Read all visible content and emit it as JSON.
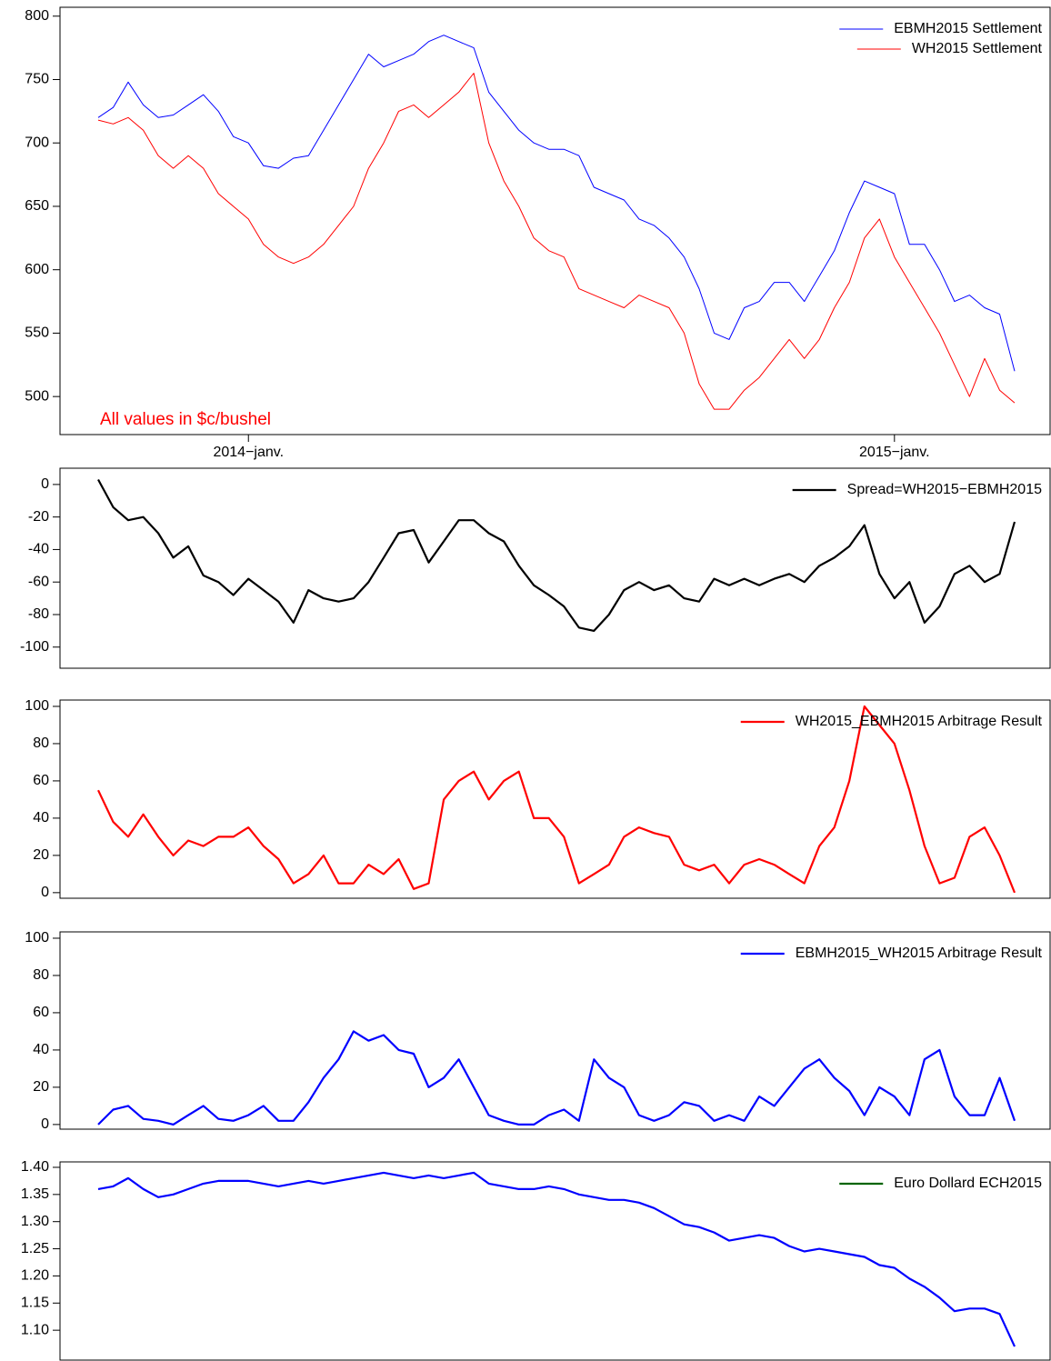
{
  "chart_data": [
    {
      "type": "line",
      "ylim": [
        470,
        807
      ],
      "yticks": [
        500,
        550,
        600,
        650,
        700,
        750,
        800
      ],
      "categories": [
        null,
        null,
        null,
        null,
        null,
        null,
        null,
        null,
        null,
        null,
        "2014−janv.",
        null,
        null,
        null,
        null,
        null,
        null,
        null,
        null,
        null,
        null,
        null,
        null,
        null,
        null,
        null,
        null,
        null,
        null,
        null,
        null,
        null,
        null,
        null,
        null,
        null,
        null,
        null,
        null,
        null,
        null,
        null,
        null,
        null,
        null,
        null,
        null,
        null,
        null,
        null,
        null,
        null,
        null,
        "2015−janv.",
        null,
        null,
        null,
        null,
        null,
        null,
        null,
        null
      ],
      "annotation": "All values in $c/bushel",
      "annotation_color": "#ff0000",
      "legend": "top-right",
      "series": [
        {
          "name": "EBMH2015 Settlement",
          "color": "#0000ff",
          "values": [
            720,
            728,
            748,
            730,
            720,
            722,
            730,
            738,
            725,
            705,
            700,
            682,
            680,
            688,
            690,
            710,
            730,
            750,
            770,
            760,
            765,
            770,
            780,
            785,
            780,
            775,
            740,
            725,
            710,
            700,
            695,
            695,
            690,
            665,
            660,
            655,
            640,
            635,
            625,
            610,
            585,
            550,
            545,
            570,
            575,
            590,
            590,
            575,
            595,
            615,
            645,
            670,
            665,
            660,
            620,
            620,
            600,
            575,
            580,
            570,
            565,
            520
          ]
        },
        {
          "name": "WH2015 Settlement",
          "color": "#ff0000",
          "values": [
            718,
            715,
            720,
            710,
            690,
            680,
            690,
            680,
            660,
            650,
            640,
            620,
            610,
            605,
            610,
            620,
            635,
            650,
            680,
            700,
            725,
            730,
            720,
            730,
            740,
            755,
            700,
            670,
            650,
            625,
            615,
            610,
            585,
            580,
            575,
            570,
            580,
            575,
            570,
            550,
            510,
            490,
            490,
            505,
            515,
            530,
            545,
            530,
            545,
            570,
            590,
            625,
            640,
            610,
            590,
            570,
            550,
            525,
            500,
            530,
            505,
            495
          ]
        }
      ]
    },
    {
      "type": "line",
      "ylim": [
        -113,
        10
      ],
      "yticks": [
        0,
        -20,
        -40,
        -60,
        -80,
        -100
      ],
      "legend": "top-right",
      "series": [
        {
          "name": "Spread=WH2015−EBMH2015",
          "color": "#000000",
          "values": [
            3,
            -14,
            -22,
            -20,
            -30,
            -45,
            -38,
            -56,
            -60,
            -68,
            -58,
            -65,
            -72,
            -85,
            -65,
            -70,
            -72,
            -70,
            -60,
            -45,
            -30,
            -28,
            -48,
            -35,
            -22,
            -22,
            -30,
            -35,
            -50,
            -62,
            -68,
            -75,
            -88,
            -90,
            -80,
            -65,
            -60,
            -65,
            -62,
            -70,
            -72,
            -58,
            -62,
            -58,
            -62,
            -58,
            -55,
            -60,
            -50,
            -45,
            -38,
            -25,
            -55,
            -70,
            -60,
            -85,
            -75,
            -55,
            -50,
            -60,
            -55,
            -23
          ]
        }
      ]
    },
    {
      "type": "line",
      "ylim": [
        -3,
        103.4
      ],
      "yticks": [
        0,
        20,
        40,
        60,
        80,
        100
      ],
      "legend": "top-right",
      "series": [
        {
          "name": "WH2015_EBMH2015 Arbitrage Result",
          "color": "#ff0000",
          "values": [
            55,
            38,
            30,
            42,
            30,
            20,
            28,
            25,
            30,
            30,
            35,
            25,
            18,
            5,
            10,
            20,
            5,
            5,
            15,
            10,
            18,
            2,
            5,
            50,
            60,
            65,
            50,
            60,
            65,
            40,
            40,
            30,
            5,
            10,
            15,
            30,
            35,
            32,
            30,
            15,
            12,
            15,
            5,
            15,
            18,
            15,
            10,
            5,
            25,
            35,
            60,
            100,
            90,
            80,
            55,
            25,
            5,
            8,
            30,
            35,
            20,
            0
          ]
        }
      ]
    },
    {
      "type": "line",
      "ylim": [
        -2.5,
        103.4
      ],
      "yticks": [
        0,
        20,
        40,
        60,
        80,
        100
      ],
      "legend": "top-right",
      "series": [
        {
          "name": "EBMH2015_WH2015 Arbitrage Result",
          "color": "#0000ff",
          "values": [
            0,
            8,
            10,
            3,
            2,
            0,
            5,
            10,
            3,
            2,
            5,
            10,
            2,
            2,
            12,
            25,
            35,
            50,
            45,
            48,
            40,
            38,
            20,
            25,
            35,
            20,
            5,
            2,
            0,
            0,
            5,
            8,
            2,
            35,
            25,
            20,
            5,
            2,
            5,
            12,
            10,
            2,
            5,
            2,
            15,
            10,
            20,
            30,
            35,
            25,
            18,
            5,
            20,
            15,
            5,
            35,
            40,
            15,
            5,
            5,
            25,
            2
          ]
        }
      ]
    },
    {
      "type": "line",
      "ylim": [
        1.045,
        1.41
      ],
      "yticks": [
        {
          "value": 1.4,
          "label": "1.40"
        },
        1.35,
        {
          "value": 1.3,
          "label": "1.30"
        },
        1.25,
        {
          "value": 1.2,
          "label": "1.20"
        },
        1.15,
        {
          "value": 1.1,
          "label": "1.10"
        }
      ],
      "legend": "top-right",
      "series": [
        {
          "name": "Euro Dollard ECH2015",
          "color": "#0000ff",
          "legend_color": "#006400",
          "values": [
            1.36,
            1.365,
            1.38,
            1.36,
            1.345,
            1.35,
            1.36,
            1.37,
            1.375,
            1.375,
            1.375,
            1.37,
            1.365,
            1.37,
            1.375,
            1.37,
            1.375,
            1.38,
            1.385,
            1.39,
            1.385,
            1.38,
            1.385,
            1.38,
            1.385,
            1.39,
            1.37,
            1.365,
            1.36,
            1.36,
            1.365,
            1.36,
            1.35,
            1.345,
            1.34,
            1.34,
            1.335,
            1.325,
            1.31,
            1.295,
            1.29,
            1.28,
            1.265,
            1.27,
            1.275,
            1.27,
            1.255,
            1.245,
            1.25,
            1.245,
            1.24,
            1.235,
            1.22,
            1.215,
            1.195,
            1.18,
            1.16,
            1.135,
            1.14,
            1.14,
            1.13,
            1.07
          ]
        }
      ]
    }
  ]
}
